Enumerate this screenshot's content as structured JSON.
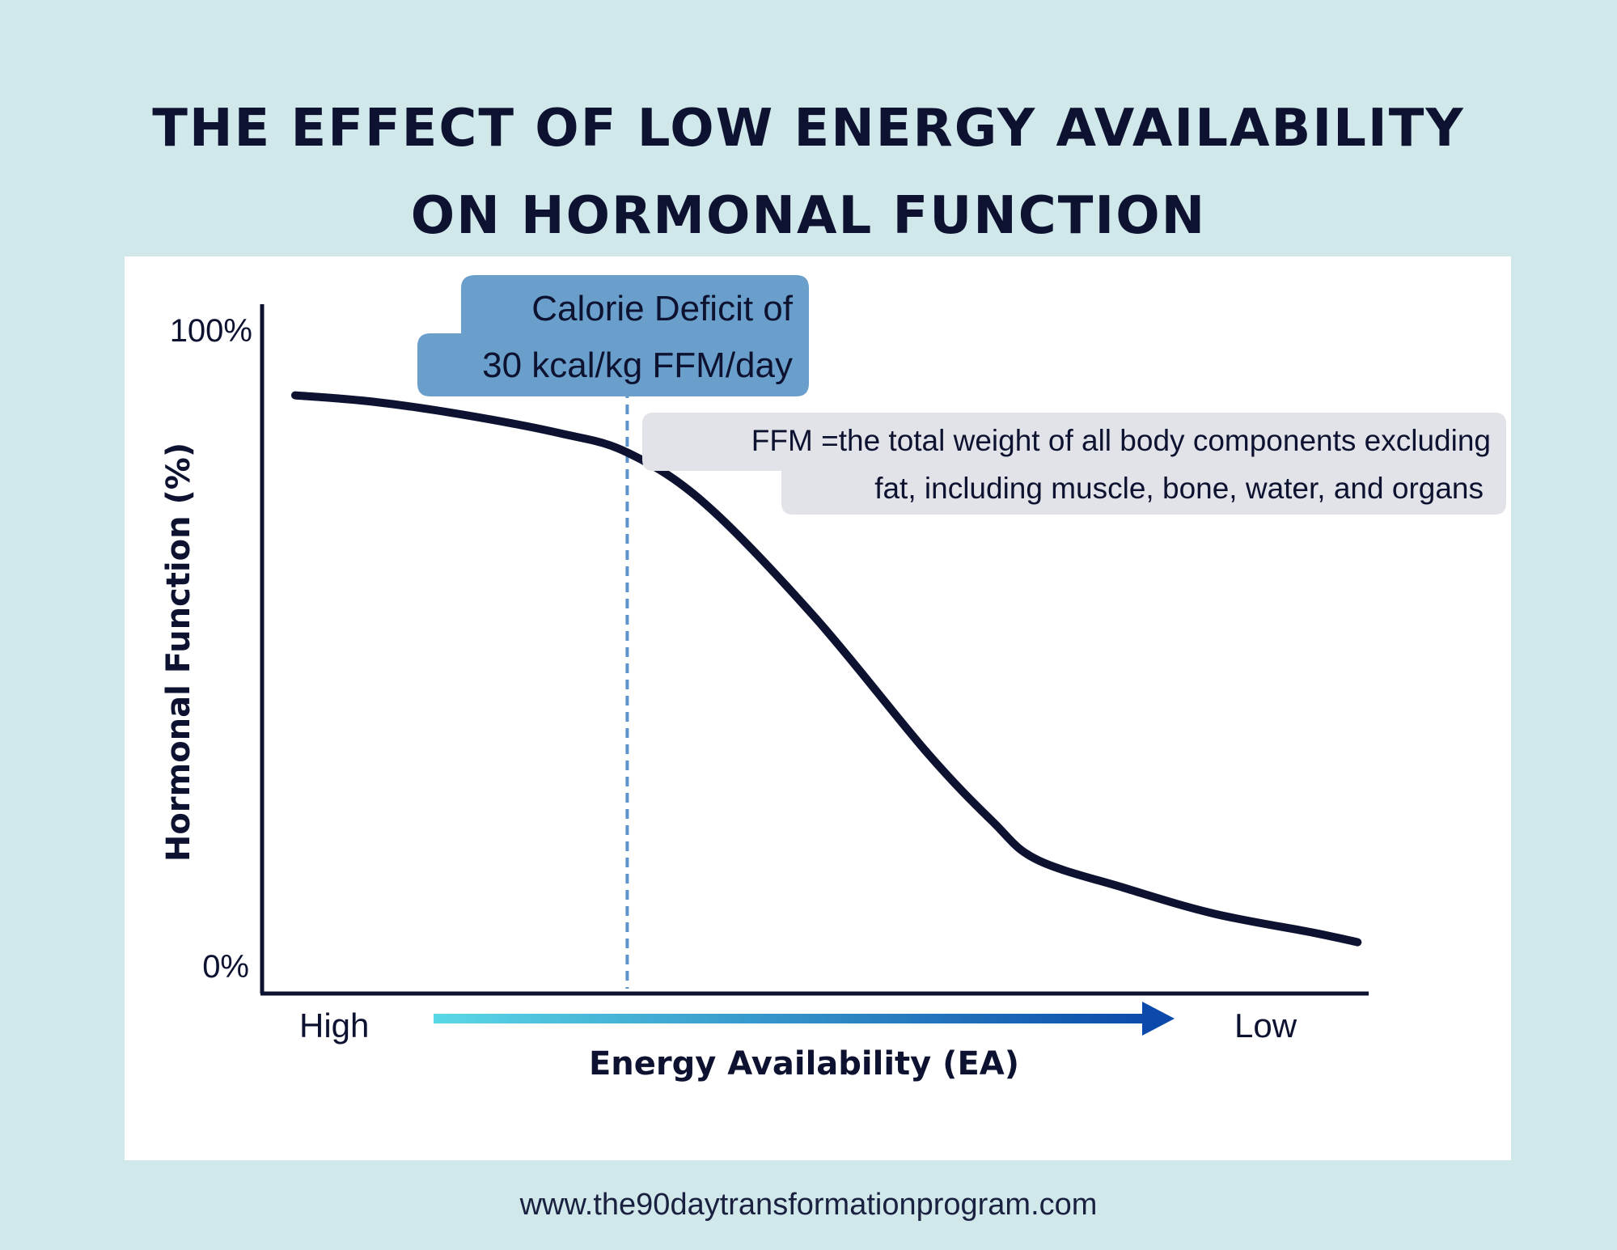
{
  "title": {
    "line1": "THE EFFECT OF LOW ENERGY AVAILABILITY",
    "line2": "ON HORMONAL FUNCTION"
  },
  "footer": {
    "url": "www.the90daytransformationprogram.com"
  },
  "colors": {
    "background": "#d1e8ea",
    "panel": "#ffffff",
    "curve": "#0d1230",
    "callout": "#6a9fcc",
    "note": "#e2e3e8",
    "arrow_start": "#5ad8e6",
    "arrow_end": "#0b4aaa"
  },
  "chart_data": {
    "type": "line",
    "title": "THE EFFECT OF LOW ENERGY AVAILABILITY ON HORMONAL FUNCTION",
    "ylabel": "Hormonal Function (%)",
    "xlabel": "Energy Availability (EA)",
    "y_tick_labels": [
      "100%",
      "0%"
    ],
    "ylim": [
      0,
      100
    ],
    "x_direction_labels": {
      "start": "High",
      "end": "Low"
    },
    "x_range": [
      0,
      100
    ],
    "series": [
      {
        "name": "Hormonal Function",
        "x": [
          3,
          10,
          18,
          27,
          33,
          40,
          50,
          60,
          66,
          70,
          78,
          86,
          95,
          99
        ],
        "y": [
          90,
          89,
          87,
          84,
          81,
          73,
          55,
          34,
          23,
          17,
          12.5,
          8.5,
          5.5,
          4
        ]
      }
    ],
    "annotations": {
      "threshold": {
        "x": 33,
        "line1": "Calorie Deficit of",
        "line2": "30 kcal/kg FFM/day"
      },
      "note": {
        "line1": "FFM =the total weight of all body components excluding",
        "line2": "fat, including muscle, bone, water, and organs"
      }
    }
  }
}
